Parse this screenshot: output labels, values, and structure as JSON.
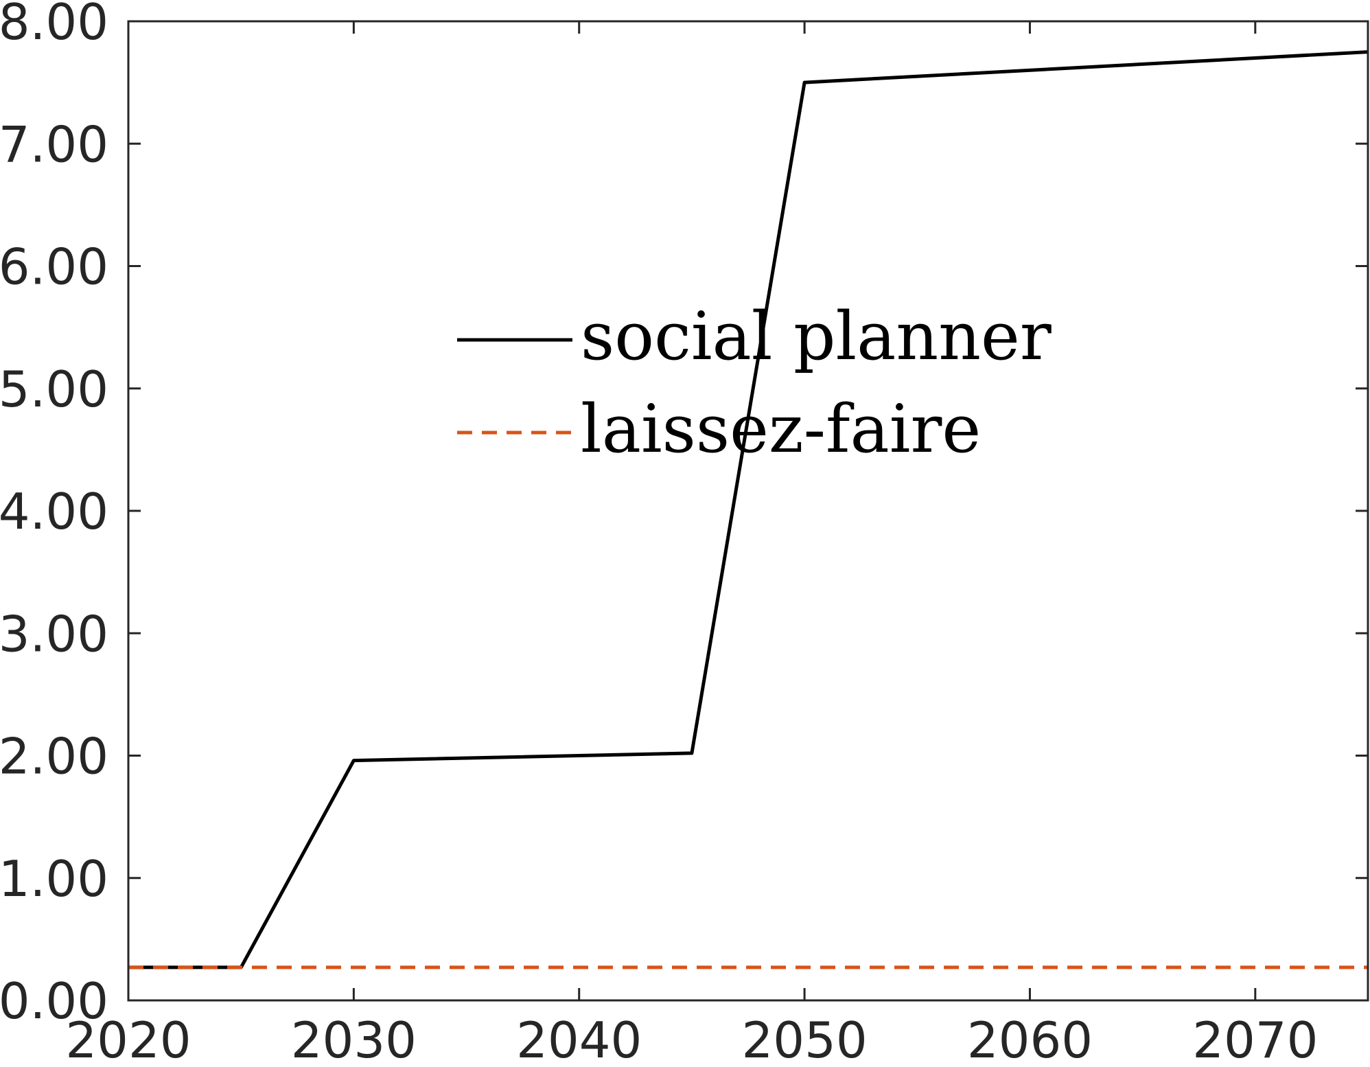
{
  "chart_data": {
    "type": "line",
    "title": "",
    "xlabel": "",
    "ylabel": "",
    "xlim": [
      2020,
      2075
    ],
    "ylim": [
      0,
      8
    ],
    "x_ticks": [
      "2020",
      "2030",
      "2040",
      "2050",
      "2060",
      "2070"
    ],
    "y_ticks": [
      "0.00",
      "1.00",
      "2.00",
      "3.00",
      "4.00",
      "5.00",
      "6.00",
      "7.00",
      "8.00"
    ],
    "grid": false,
    "legend_position": "center",
    "series": [
      {
        "name": "social planner",
        "color": "#000000",
        "style": "solid",
        "points": [
          [
            2020,
            0.27
          ],
          [
            2025,
            0.27
          ],
          [
            2030,
            1.96
          ],
          [
            2045,
            2.02
          ],
          [
            2050,
            7.5
          ],
          [
            2075,
            7.75
          ]
        ]
      },
      {
        "name": "laissez-faire",
        "color": "#d95319",
        "style": "dashed",
        "points": [
          [
            2020,
            0.27
          ],
          [
            2075,
            0.27
          ]
        ]
      }
    ]
  }
}
